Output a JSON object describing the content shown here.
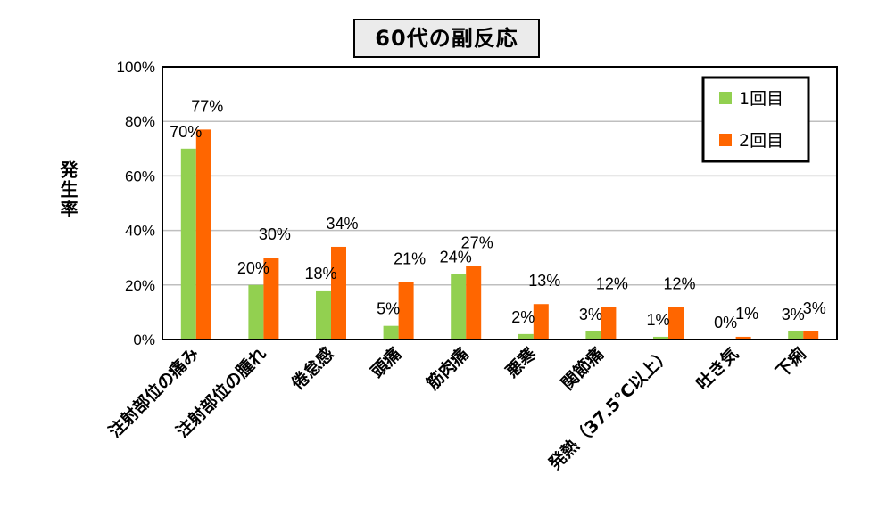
{
  "chart_data": {
    "type": "bar",
    "title": "60代の副反応",
    "xlabel": "",
    "ylabel": "発生率",
    "ylim": [
      0,
      100
    ],
    "yticks": [
      "0%",
      "20%",
      "40%",
      "60%",
      "80%",
      "100%"
    ],
    "categories": [
      "注射部位の痛み",
      "注射部位の腫れ",
      "倦怠感",
      "頭痛",
      "筋肉痛",
      "悪寒",
      "関節痛",
      "発熱（37.5℃以上）",
      "吐き気",
      "下痢"
    ],
    "series": [
      {
        "name": "1回目",
        "color": "#92d050",
        "values": [
          70,
          20,
          18,
          5,
          24,
          2,
          3,
          1,
          0,
          3
        ],
        "labels": [
          "70%",
          "20%",
          "18%",
          "5%",
          "24%",
          "2%",
          "3%",
          "1%",
          "0%",
          "3%"
        ]
      },
      {
        "name": "2回目",
        "color": "#ff6600",
        "values": [
          77,
          30,
          34,
          21,
          27,
          13,
          12,
          12,
          1,
          3
        ],
        "labels": [
          "77%",
          "30%",
          "34%",
          "21%",
          "27%",
          "13%",
          "12%",
          "12%",
          "1%",
          "3%"
        ]
      }
    ],
    "grid": true,
    "legend_position": "top-right"
  }
}
